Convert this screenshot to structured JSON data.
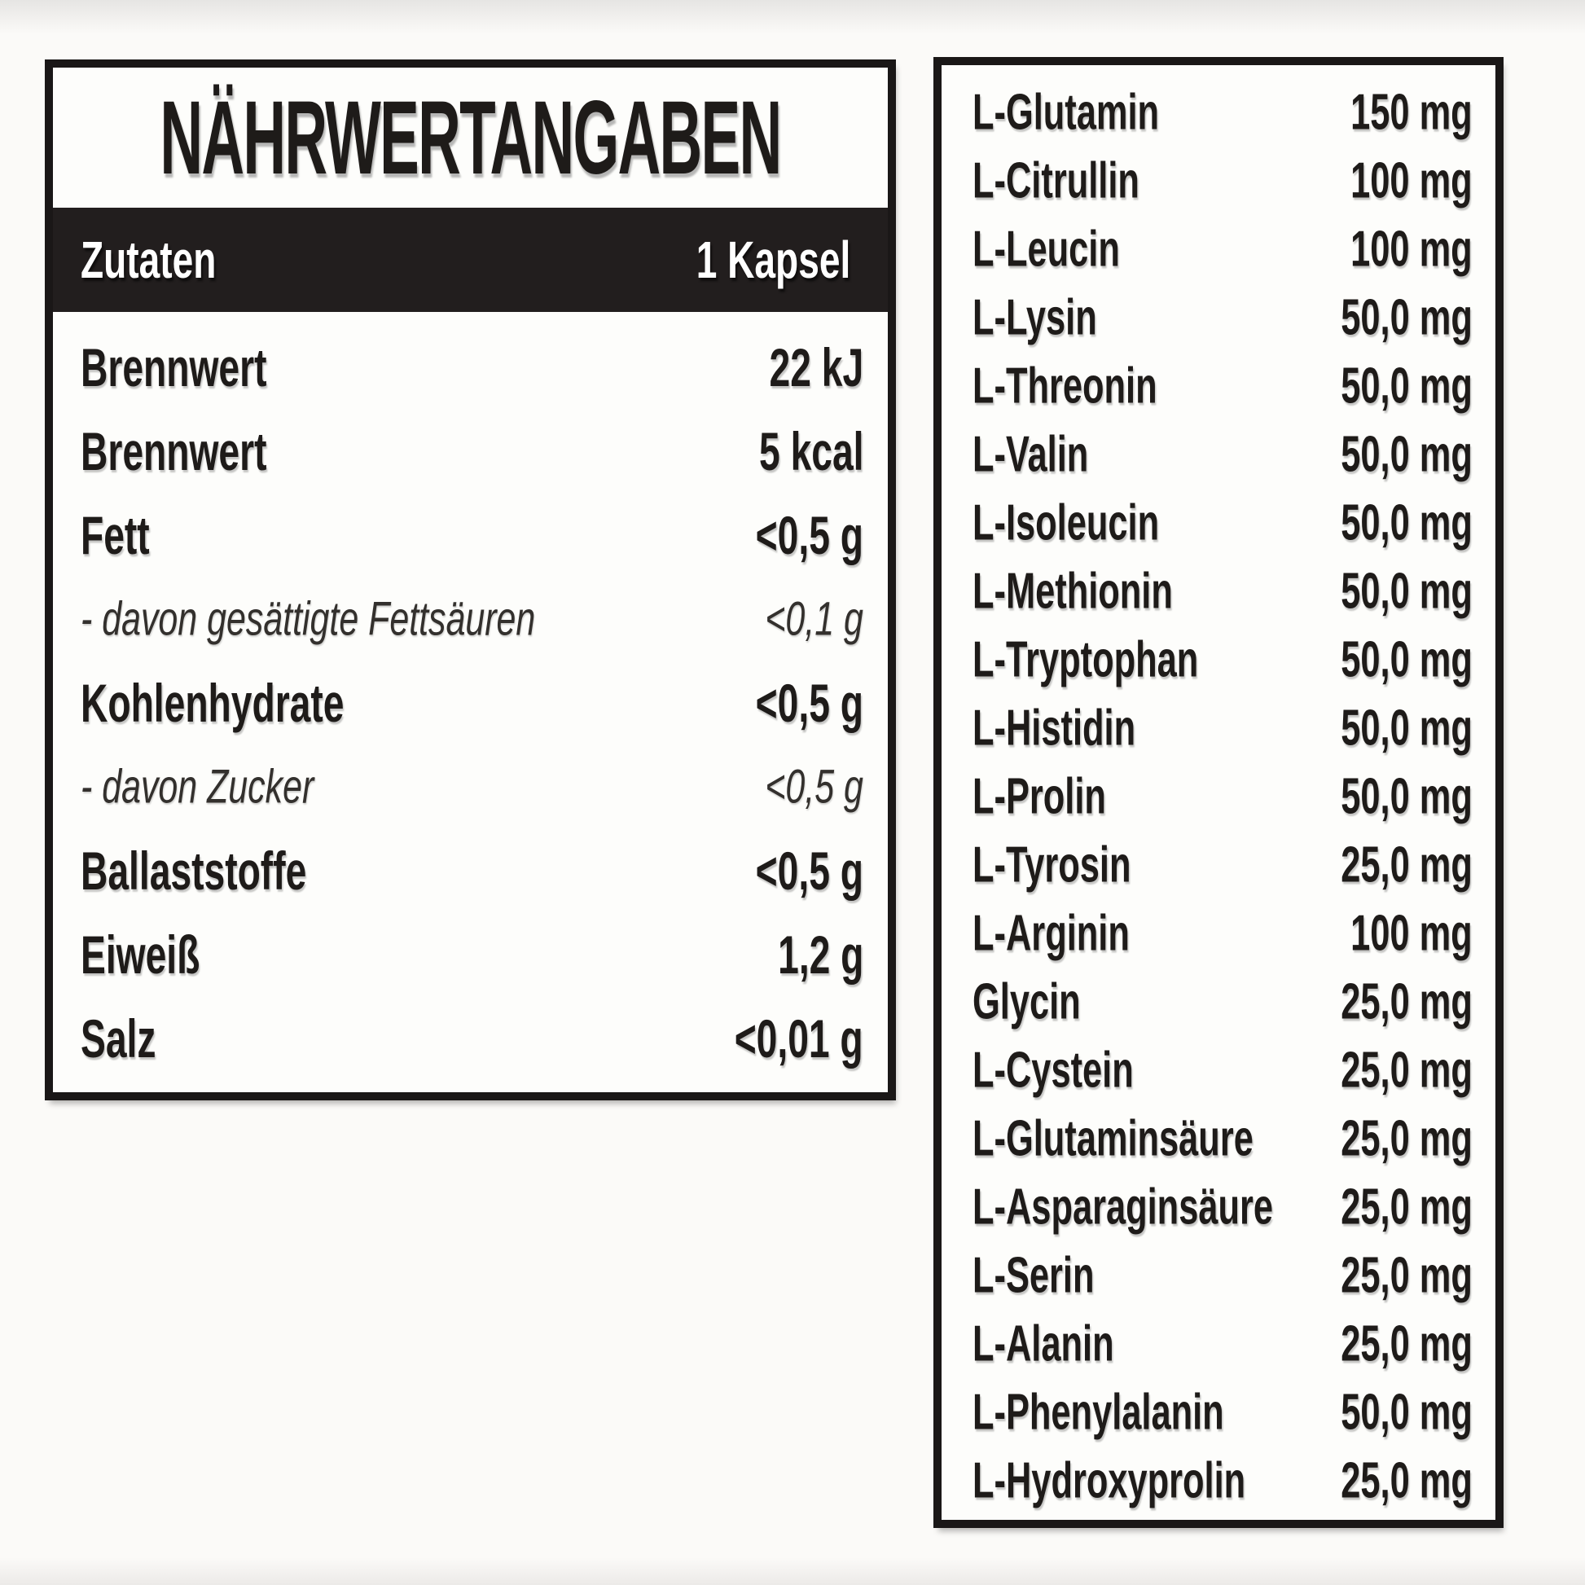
{
  "nutrition_panel": {
    "title": "NÄHRWERTANGABEN",
    "header": {
      "left": "Zutaten",
      "right": "1 Kapsel"
    },
    "rows": [
      {
        "label": "Brennwert",
        "value": "22 kJ"
      },
      {
        "label": "Brennwert",
        "value": "5 kcal"
      },
      {
        "label": "Fett",
        "value": "<0,5 g"
      },
      {
        "label": "- davon gesättigte Fettsäuren",
        "value": "<0,1 g"
      },
      {
        "label": "Kohlenhydrate",
        "value": "<0,5 g"
      },
      {
        "label": "- davon Zucker",
        "value": "<0,5 g"
      },
      {
        "label": "Ballaststoffe",
        "value": "<0,5 g"
      },
      {
        "label": "Eiweiß",
        "value": "1,2 g"
      },
      {
        "label": "Salz",
        "value": "<0,01 g"
      }
    ]
  },
  "amino_panel": {
    "rows": [
      {
        "label": "L-Glutamin",
        "value": "150 mg"
      },
      {
        "label": "L-Citrullin",
        "value": "100 mg"
      },
      {
        "label": "L-Leucin",
        "value": "100 mg"
      },
      {
        "label": "L-Lysin",
        "value": "50,0 mg"
      },
      {
        "label": "L-Threonin",
        "value": "50,0 mg"
      },
      {
        "label": "L-Valin",
        "value": "50,0 mg"
      },
      {
        "label": "L-Isoleucin",
        "value": "50,0 mg"
      },
      {
        "label": "L-Methionin",
        "value": "50,0 mg"
      },
      {
        "label": "L-Tryptophan",
        "value": "50,0 mg"
      },
      {
        "label": "L-Histidin",
        "value": "50,0 mg"
      },
      {
        "label": "L-Prolin",
        "value": "50,0 mg"
      },
      {
        "label": "L-Tyrosin",
        "value": "25,0 mg"
      },
      {
        "label": "L-Arginin",
        "value": "100 mg"
      },
      {
        "label": "Glycin",
        "value": "25,0 mg"
      },
      {
        "label": "L-Cystein",
        "value": "25,0 mg"
      },
      {
        "label": "L-Glutaminsäure",
        "value": "25,0 mg"
      },
      {
        "label": "L-Asparaginsäure",
        "value": "25,0 mg"
      },
      {
        "label": "L-Serin",
        "value": "25,0 mg"
      },
      {
        "label": "L-Alanin",
        "value": "25,0 mg"
      },
      {
        "label": "L-Phenylalanin",
        "value": "50,0 mg"
      },
      {
        "label": "L-Hydroxyprolin",
        "value": "25,0 mg"
      }
    ]
  },
  "colors": {
    "ink": "#1e1b19",
    "header_bar_bg": "#221e1e",
    "panel_border": "#1a1717",
    "panel_bg": "#fdfdfb",
    "page_bg": "#fbfaf8"
  }
}
